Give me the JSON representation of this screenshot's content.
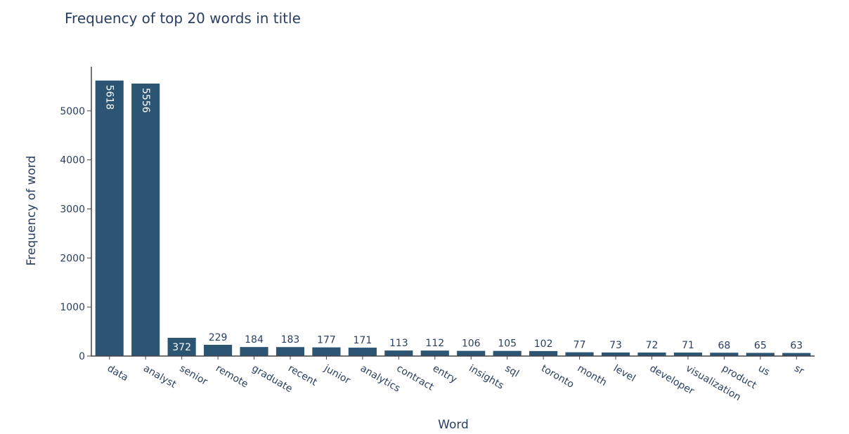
{
  "chart_data": {
    "type": "bar",
    "title": "Frequency of top 20 words in title",
    "xlabel": "Word",
    "ylabel": "Frequency of word",
    "categories": [
      "data",
      "analyst",
      "senior",
      "remote",
      "graduate",
      "recent",
      "junior",
      "analytics",
      "contract",
      "entry",
      "insights",
      "sql",
      "toronto",
      "month",
      "level",
      "developer",
      "visualization",
      "product",
      "us",
      "sr"
    ],
    "values": [
      5618,
      5556,
      372,
      229,
      184,
      183,
      177,
      171,
      113,
      112,
      106,
      105,
      102,
      77,
      73,
      72,
      71,
      68,
      65,
      63
    ],
    "yticks": [
      0,
      1000,
      2000,
      3000,
      4000,
      5000
    ],
    "ylim": [
      0,
      5900
    ],
    "bar_color": "#2b5573",
    "grid": false,
    "legend": "none"
  }
}
